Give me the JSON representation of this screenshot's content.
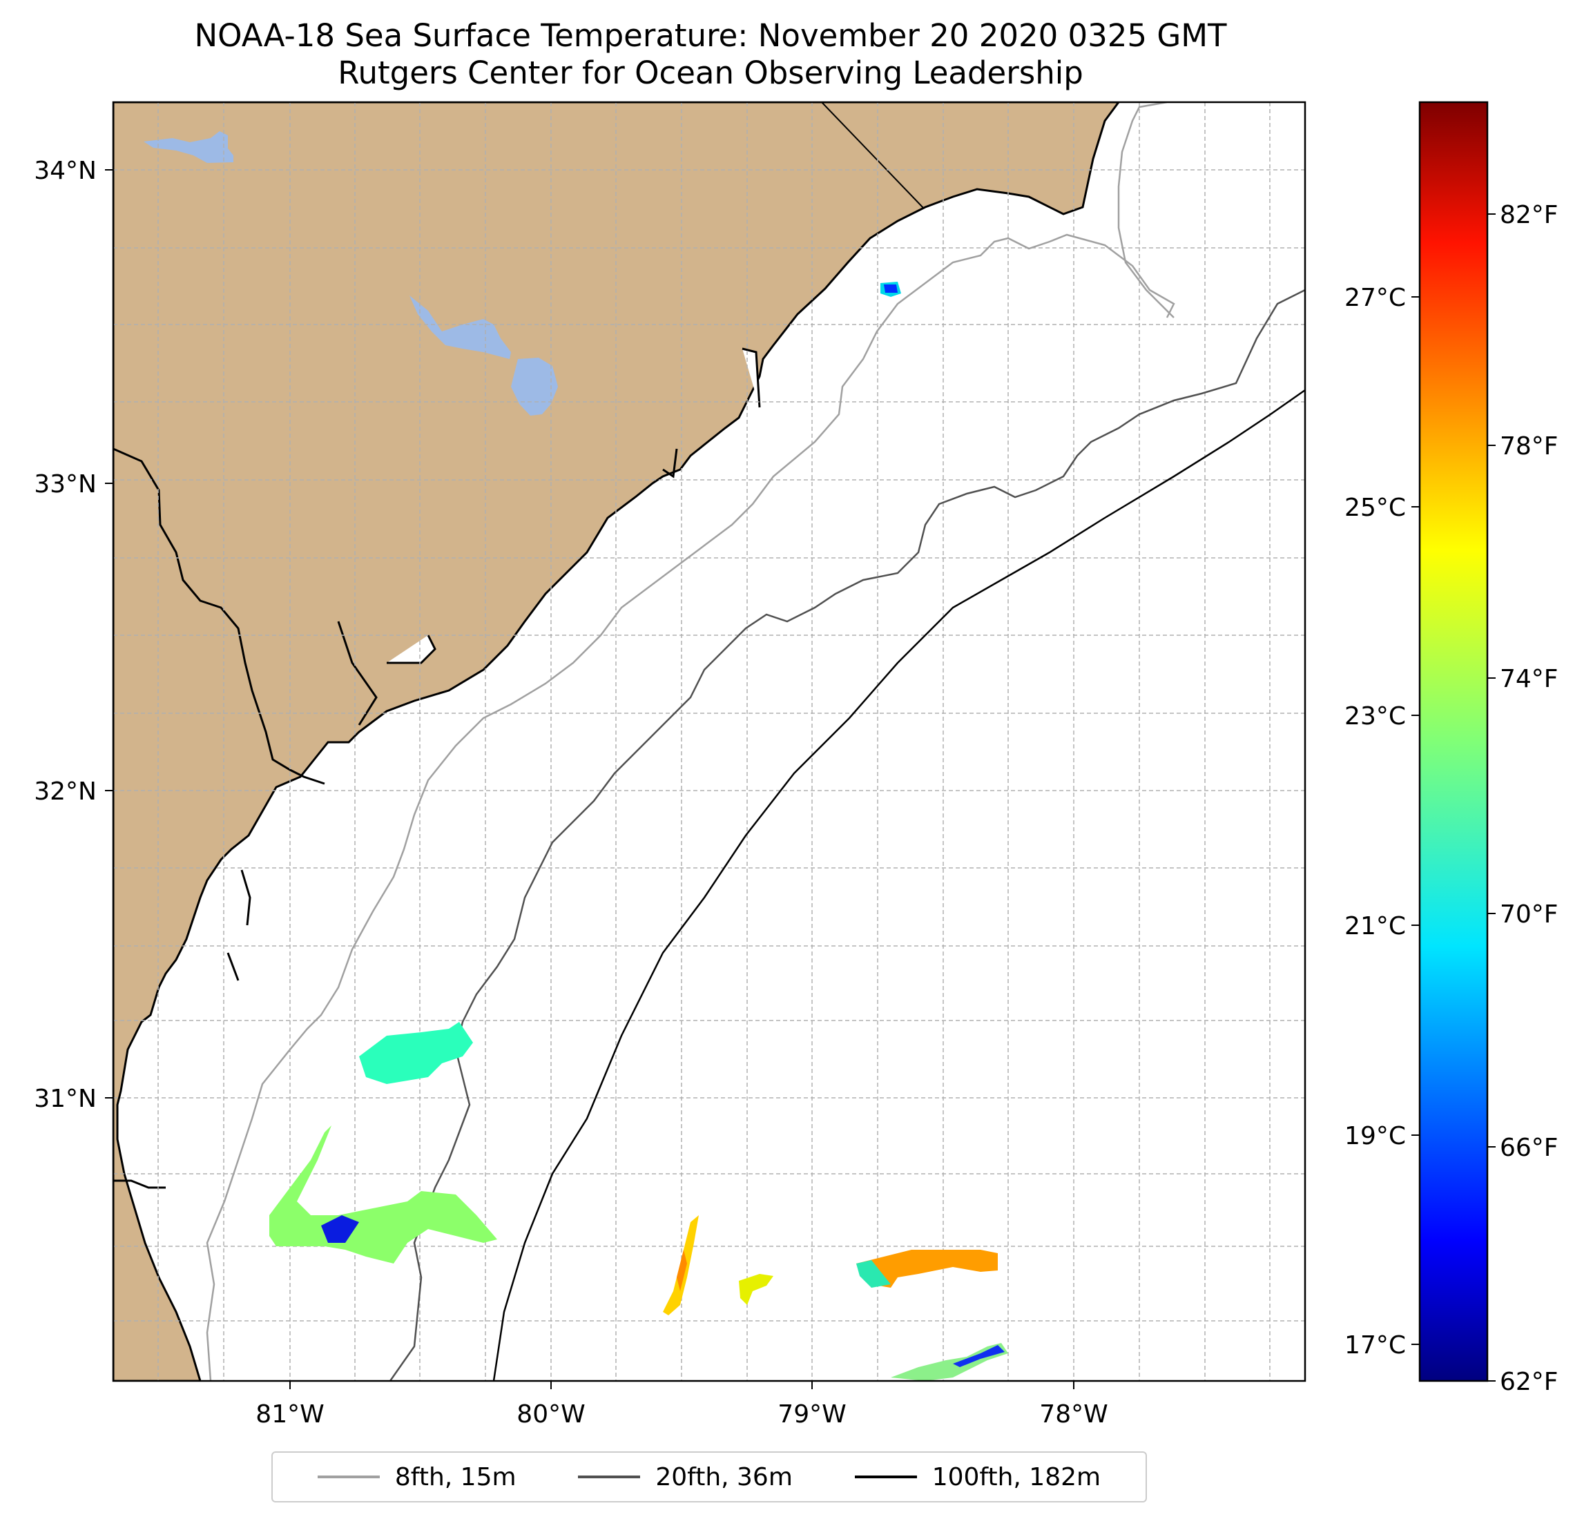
{
  "title": {
    "line1": "NOAA-18 Sea Surface Temperature: November 20 2020 0325 GMT",
    "line2": "Rutgers Center for Ocean Observing Leadership"
  },
  "map": {
    "lat_range": [
      30.1,
      34.2
    ],
    "lon_range": [
      -81.68,
      -77.23
    ],
    "lat_labels": [
      "34°N",
      "33°N",
      "32°N",
      "31°N"
    ],
    "lon_labels": [
      "81°W",
      "80°W",
      "79°W",
      "78°W"
    ],
    "gridlines": true,
    "colors": {
      "land": "#d2b48c",
      "lakes": "#9dbae6",
      "ocean": "#ffffff"
    }
  },
  "colorbar": {
    "fahrenheit_labels": [
      "82°F",
      "78°F",
      "74°F",
      "70°F",
      "66°F",
      "62°F"
    ],
    "celsius_labels": [
      "27°C",
      "25°C",
      "23°C",
      "21°C",
      "19°C",
      "17°C"
    ],
    "range_f": [
      62,
      84
    ],
    "colormap": "jet"
  },
  "legend": {
    "items": [
      {
        "label": "8fth, 15m",
        "color": "#a0a0a0"
      },
      {
        "label": "20fth, 36m",
        "color": "#505050"
      },
      {
        "label": "100fth, 182m",
        "color": "#000000"
      }
    ]
  }
}
